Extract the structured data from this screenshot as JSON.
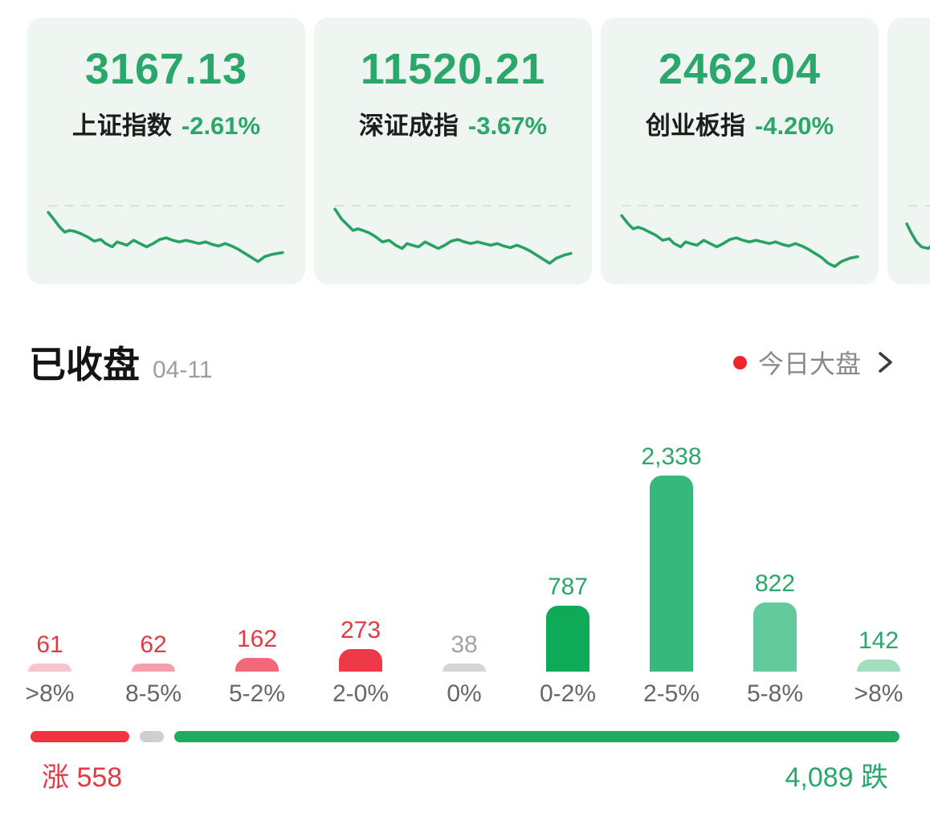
{
  "indices": {
    "cards": [
      {
        "value": "3167.13",
        "name": "上证指数",
        "change": "-2.61%",
        "sparkline": [
          [
            6,
            22
          ],
          [
            14,
            32
          ],
          [
            20,
            40
          ],
          [
            26,
            46
          ],
          [
            32,
            44
          ],
          [
            38,
            45
          ],
          [
            46,
            48
          ],
          [
            54,
            52
          ],
          [
            62,
            57
          ],
          [
            70,
            55
          ],
          [
            76,
            60
          ],
          [
            84,
            64
          ],
          [
            90,
            58
          ],
          [
            96,
            60
          ],
          [
            102,
            62
          ],
          [
            110,
            56
          ],
          [
            118,
            60
          ],
          [
            126,
            64
          ],
          [
            134,
            60
          ],
          [
            142,
            55
          ],
          [
            150,
            53
          ],
          [
            158,
            56
          ],
          [
            166,
            58
          ],
          [
            174,
            56
          ],
          [
            182,
            58
          ],
          [
            190,
            60
          ],
          [
            198,
            58
          ],
          [
            206,
            61
          ],
          [
            214,
            63
          ],
          [
            222,
            60
          ],
          [
            230,
            63
          ],
          [
            238,
            67
          ],
          [
            246,
            72
          ],
          [
            254,
            77
          ],
          [
            262,
            82
          ],
          [
            270,
            76
          ],
          [
            280,
            73
          ],
          [
            292,
            71
          ]
        ]
      },
      {
        "value": "11520.21",
        "name": "深证成指",
        "change": "-3.67%",
        "sparkline": [
          [
            6,
            18
          ],
          [
            14,
            30
          ],
          [
            22,
            38
          ],
          [
            28,
            44
          ],
          [
            34,
            42
          ],
          [
            40,
            44
          ],
          [
            48,
            47
          ],
          [
            56,
            52
          ],
          [
            64,
            58
          ],
          [
            72,
            56
          ],
          [
            80,
            62
          ],
          [
            88,
            66
          ],
          [
            94,
            60
          ],
          [
            100,
            62
          ],
          [
            108,
            64
          ],
          [
            116,
            58
          ],
          [
            124,
            62
          ],
          [
            132,
            66
          ],
          [
            140,
            62
          ],
          [
            148,
            57
          ],
          [
            156,
            55
          ],
          [
            164,
            58
          ],
          [
            172,
            60
          ],
          [
            180,
            58
          ],
          [
            188,
            60
          ],
          [
            196,
            62
          ],
          [
            204,
            60
          ],
          [
            212,
            63
          ],
          [
            220,
            65
          ],
          [
            228,
            62
          ],
          [
            236,
            65
          ],
          [
            244,
            69
          ],
          [
            252,
            74
          ],
          [
            260,
            79
          ],
          [
            268,
            84
          ],
          [
            276,
            78
          ],
          [
            286,
            74
          ],
          [
            294,
            72
          ]
        ]
      },
      {
        "value": "2462.04",
        "name": "创业板指",
        "change": "-4.20%",
        "sparkline": [
          [
            6,
            26
          ],
          [
            14,
            36
          ],
          [
            20,
            42
          ],
          [
            26,
            40
          ],
          [
            32,
            42
          ],
          [
            40,
            46
          ],
          [
            48,
            50
          ],
          [
            56,
            56
          ],
          [
            64,
            54
          ],
          [
            70,
            60
          ],
          [
            78,
            64
          ],
          [
            84,
            58
          ],
          [
            90,
            60
          ],
          [
            98,
            62
          ],
          [
            106,
            56
          ],
          [
            114,
            60
          ],
          [
            122,
            64
          ],
          [
            130,
            60
          ],
          [
            138,
            55
          ],
          [
            146,
            53
          ],
          [
            154,
            56
          ],
          [
            162,
            58
          ],
          [
            170,
            56
          ],
          [
            178,
            58
          ],
          [
            186,
            60
          ],
          [
            194,
            58
          ],
          [
            202,
            61
          ],
          [
            210,
            63
          ],
          [
            218,
            60
          ],
          [
            226,
            63
          ],
          [
            234,
            67
          ],
          [
            242,
            72
          ],
          [
            250,
            77
          ],
          [
            258,
            84
          ],
          [
            266,
            88
          ],
          [
            274,
            82
          ],
          [
            284,
            78
          ],
          [
            294,
            76
          ]
        ]
      }
    ],
    "partial_card": {
      "sparkline": [
        [
          4,
          36
        ],
        [
          10,
          48
        ],
        [
          16,
          58
        ],
        [
          22,
          64
        ],
        [
          30,
          66
        ],
        [
          38,
          60
        ],
        [
          46,
          52
        ]
      ]
    }
  },
  "market_status": {
    "title": "已收盘",
    "date": "04-11"
  },
  "today_link": {
    "label": "今日大盘",
    "dot_color": "#f1232f"
  },
  "chart_data": {
    "type": "bar",
    "title": "",
    "categories": [
      ">8%",
      "8-5%",
      "5-2%",
      "2-0%",
      "0%",
      "0-2%",
      "2-5%",
      "5-8%",
      ">8%"
    ],
    "values": [
      61,
      62,
      162,
      273,
      38,
      787,
      2338,
      822,
      142
    ],
    "value_labels": [
      "61",
      "62",
      "162",
      "273",
      "38",
      "787",
      "2,338",
      "822",
      "142"
    ],
    "bar_colors": [
      "#f7c6cd",
      "#f4a0ac",
      "#f3677a",
      "#ee3a48",
      "#d5d5d5",
      "#0faa58",
      "#36b87c",
      "#63cb9b",
      "#a3ddbe"
    ],
    "value_label_colors": [
      "#e23a45",
      "#e23a45",
      "#e23a45",
      "#e23a45",
      "#a3a3a3",
      "#2aa76a",
      "#2aa76a",
      "#2aa76a",
      "#2aa76a"
    ],
    "xlabel": "",
    "ylabel": "",
    "ylim": [
      0,
      2338
    ],
    "grid": false,
    "legend": null,
    "summary": {
      "up": 558,
      "flat": 38,
      "down": 4089,
      "up_label": "涨 558",
      "down_label": "4,089 跌"
    }
  },
  "colors": {
    "index_green": "#2aa76a",
    "up_red": "#e23a45",
    "gauge_red": "#f0333f",
    "gauge_gray": "#cfcfcf",
    "gauge_green": "#1fab61",
    "card_bg": "#eff6f1"
  }
}
